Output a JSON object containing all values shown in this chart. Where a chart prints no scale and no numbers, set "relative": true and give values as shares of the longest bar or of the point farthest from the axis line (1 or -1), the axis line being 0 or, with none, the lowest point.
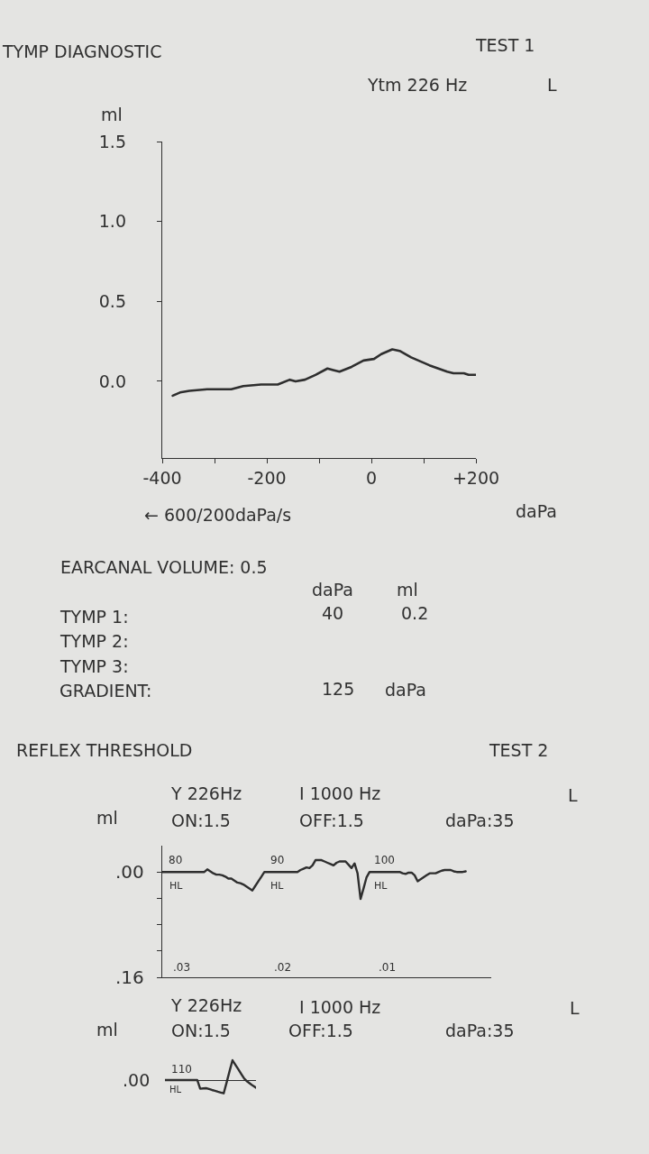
{
  "chart_data": [
    {
      "type": "line",
      "title": "TYMP DIAGNOSTIC",
      "xlabel": "daPa",
      "ylabel": "ml",
      "annotations": [
        "TEST 1",
        "Ytm 226 Hz",
        "L",
        "← 600/200daPa/s",
        "EARCANAL VOLUME: 0.5",
        "daPa",
        "ml",
        "TYMP 1:",
        "40",
        "0.2",
        "TYMP 2:",
        "TYMP 3:",
        "GRADIENT:",
        "125",
        "daPa"
      ],
      "x": [
        -380,
        -366,
        -348,
        -314,
        -268,
        -245,
        -211,
        -179,
        -156,
        -145,
        -127,
        -107,
        -84,
        -73,
        -61,
        -38,
        -15,
        5,
        19,
        40,
        54,
        76,
        111,
        145,
        157,
        177,
        186,
        200
      ],
      "series": [
        {
          "color": "#2e2e2e",
          "values": [
            -0.09,
            -0.07,
            -0.06,
            -0.05,
            -0.05,
            -0.03,
            -0.02,
            -0.02,
            0.01,
            0.0,
            0.01,
            0.04,
            0.08,
            0.07,
            0.06,
            0.09,
            0.13,
            0.14,
            0.17,
            0.2,
            0.19,
            0.15,
            0.1,
            0.06,
            0.05,
            0.05,
            0.04,
            0.04
          ]
        }
      ],
      "xlim": [
        -400,
        200
      ],
      "ylim": [
        -0.48,
        1.5
      ],
      "xticks": [
        -400,
        {
          "value": -300,
          "label": null
        },
        -200,
        {
          "value": -100,
          "label": null
        },
        0,
        {
          "value": 100,
          "label": null
        },
        {
          "value": 200,
          "label": "+200"
        }
      ],
      "yticks": [
        {
          "value": 0,
          "label": "0.0"
        },
        0.5,
        {
          "value": 1,
          "label": "1.0"
        },
        1.5
      ]
    },
    {
      "type": "line",
      "title": "REFLEX THRESHOLD",
      "ylabel": "ml",
      "annotations": [
        "TEST 2",
        "Y 226Hz",
        "I 1000 Hz",
        "L",
        "ON:1.5",
        "OFF:1.5",
        "daPa:35",
        "80",
        "HL",
        "90",
        "HL",
        "100",
        "HL",
        ".03",
        ".02",
        ".01"
      ],
      "categories": [
        null,
        null,
        null,
        null,
        null,
        null,
        null,
        null,
        null,
        null,
        null,
        null,
        null,
        null,
        null,
        null,
        null,
        null,
        null,
        null,
        null,
        null,
        null,
        null,
        null,
        null,
        null,
        null,
        null,
        null,
        null,
        null,
        null,
        null,
        null,
        null,
        null,
        null,
        null,
        null,
        null,
        null,
        null,
        null,
        null,
        null,
        null,
        null,
        null,
        null,
        null,
        null,
        null,
        null,
        null,
        null,
        null,
        null,
        null,
        null,
        null,
        null,
        null,
        null,
        null,
        null,
        null,
        null,
        null,
        null,
        null,
        null,
        null,
        null,
        null,
        null,
        null,
        null,
        null,
        null,
        null,
        null,
        null,
        null,
        null,
        null,
        null,
        null,
        null,
        null,
        null,
        null,
        null,
        null,
        null,
        null,
        null,
        null,
        null,
        null,
        null,
        null,
        null,
        null,
        null,
        null,
        null,
        null,
        null,
        null
      ],
      "series": [
        {
          "color": "#2e2e2e",
          "values": [
            0,
            0,
            0,
            0,
            0,
            0,
            0,
            0,
            0,
            0,
            0,
            0,
            0,
            0,
            0,
            -0.004,
            -0.001,
            0.002,
            0.004,
            0.004,
            0.005,
            0.007,
            0.01,
            0.01,
            0.013,
            0.016,
            0.017,
            0.019,
            0.022,
            0.025,
            0.028,
            0.021,
            0.014,
            0.007,
            0,
            0,
            0,
            0,
            0,
            0,
            0,
            0,
            0,
            0,
            0,
            0,
            -0.003,
            -0.005,
            -0.007,
            -0.006,
            -0.01,
            -0.018,
            -0.018,
            -0.018,
            -0.016,
            -0.014,
            -0.012,
            -0.01,
            -0.014,
            -0.016,
            -0.016,
            -0.016,
            -0.011,
            -0.006,
            -0.013,
            0.002,
            0.041,
            0.025,
            0.008,
            0,
            0,
            0,
            0,
            0,
            0,
            0,
            0,
            0,
            0,
            0,
            0.002,
            0.003,
            0.001,
            0.001,
            0.005,
            0.014,
            0.011,
            0.008,
            0.005,
            0.002,
            0.002,
            0.002,
            0,
            -0.002,
            -0.003,
            -0.003,
            -0.003,
            -0.001,
            0,
            0,
            0,
            -0.001,
            null,
            null,
            null,
            null,
            null,
            null,
            null,
            null
          ]
        }
      ],
      "ylim": [
        0.16,
        -0.04
      ],
      "yticks": [
        {
          "value": 0,
          "label": ".00"
        },
        {
          "value": 0.04,
          "label": null
        },
        {
          "value": 0.08,
          "label": null
        },
        {
          "value": 0.12,
          "label": null
        },
        {
          "value": 0.16,
          "label": ".16"
        }
      ],
      "tick_labels": "y"
    },
    {
      "type": "line",
      "ylabel": "ml",
      "relative": true,
      "tick_labels": false,
      "annotations": [
        "Y 226Hz",
        "I 1000 Hz",
        "L",
        "ON:1.5",
        "OFF:1.5",
        "daPa:35",
        ".00",
        "110",
        "HL"
      ],
      "categories": [
        null,
        null,
        null,
        null,
        null,
        null,
        null,
        null,
        null,
        null,
        null,
        null,
        null,
        null,
        null,
        null,
        null,
        null,
        null,
        null,
        null,
        null,
        null,
        null,
        null,
        null,
        null,
        null,
        null,
        null,
        null,
        null
      ],
      "series": [
        {
          "color": "#2e2e2e",
          "values": [
            0,
            0,
            0,
            0,
            0,
            0,
            0,
            0,
            0,
            0,
            0,
            0,
            -0.44,
            -0.42,
            -0.41,
            -0.45,
            -0.5,
            -0.54,
            -0.59,
            -0.63,
            -0.67,
            -0.12,
            0.45,
            1,
            0.77,
            0.54,
            0.3,
            0.07,
            -0.07,
            -0.18,
            -0.29,
            -0.39
          ]
        }
      ]
    }
  ]
}
